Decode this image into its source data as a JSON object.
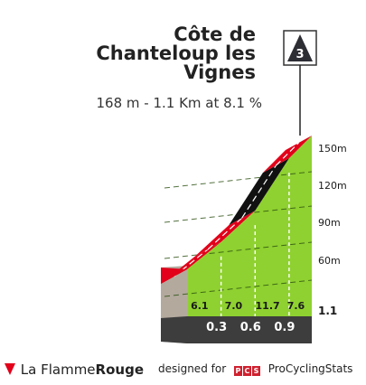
{
  "climb": {
    "name_lines": [
      "Côte de",
      "Chanteloup les",
      "Vignes"
    ],
    "stats": "168 m - 1.1 Km at 8.1 %",
    "category": "3"
  },
  "chart_data": {
    "type": "area",
    "title": "Côte de Chanteloup les Vignes",
    "subtitle": "168 m - 1.1 Km at 8.1 %",
    "x_unit": "km",
    "km_markers": [
      0.3,
      0.6,
      0.9
    ],
    "total_km_label": "1.1",
    "segments": [
      {
        "start_km": 0.0,
        "end_km": 0.3,
        "gradient": 6.1,
        "color": "#e2001a"
      },
      {
        "start_km": 0.3,
        "end_km": 0.6,
        "gradient": 7.0,
        "color": "#e2001a"
      },
      {
        "start_km": 0.6,
        "end_km": 0.9,
        "gradient": 11.7,
        "color": "#111111"
      },
      {
        "start_km": 0.9,
        "end_km": 1.1,
        "gradient": 7.6,
        "color": "#e2001a"
      }
    ],
    "y_ticks": [
      "150m",
      "120m",
      "90m",
      "60m"
    ],
    "ylim": [
      60,
      165
    ]
  },
  "footer": {
    "brand_left": "La Flamme",
    "brand_right": "Rouge",
    "designed_for": "designed for",
    "pcs_letters": [
      "P",
      "C",
      "S"
    ],
    "pcs_name": "ProCyclingStats"
  },
  "colors": {
    "fill": "#8fd130",
    "fill_dark": "#6fae1e",
    "side": "#b3a99d",
    "base": "#3d3d3d",
    "red": "#e2001a"
  }
}
